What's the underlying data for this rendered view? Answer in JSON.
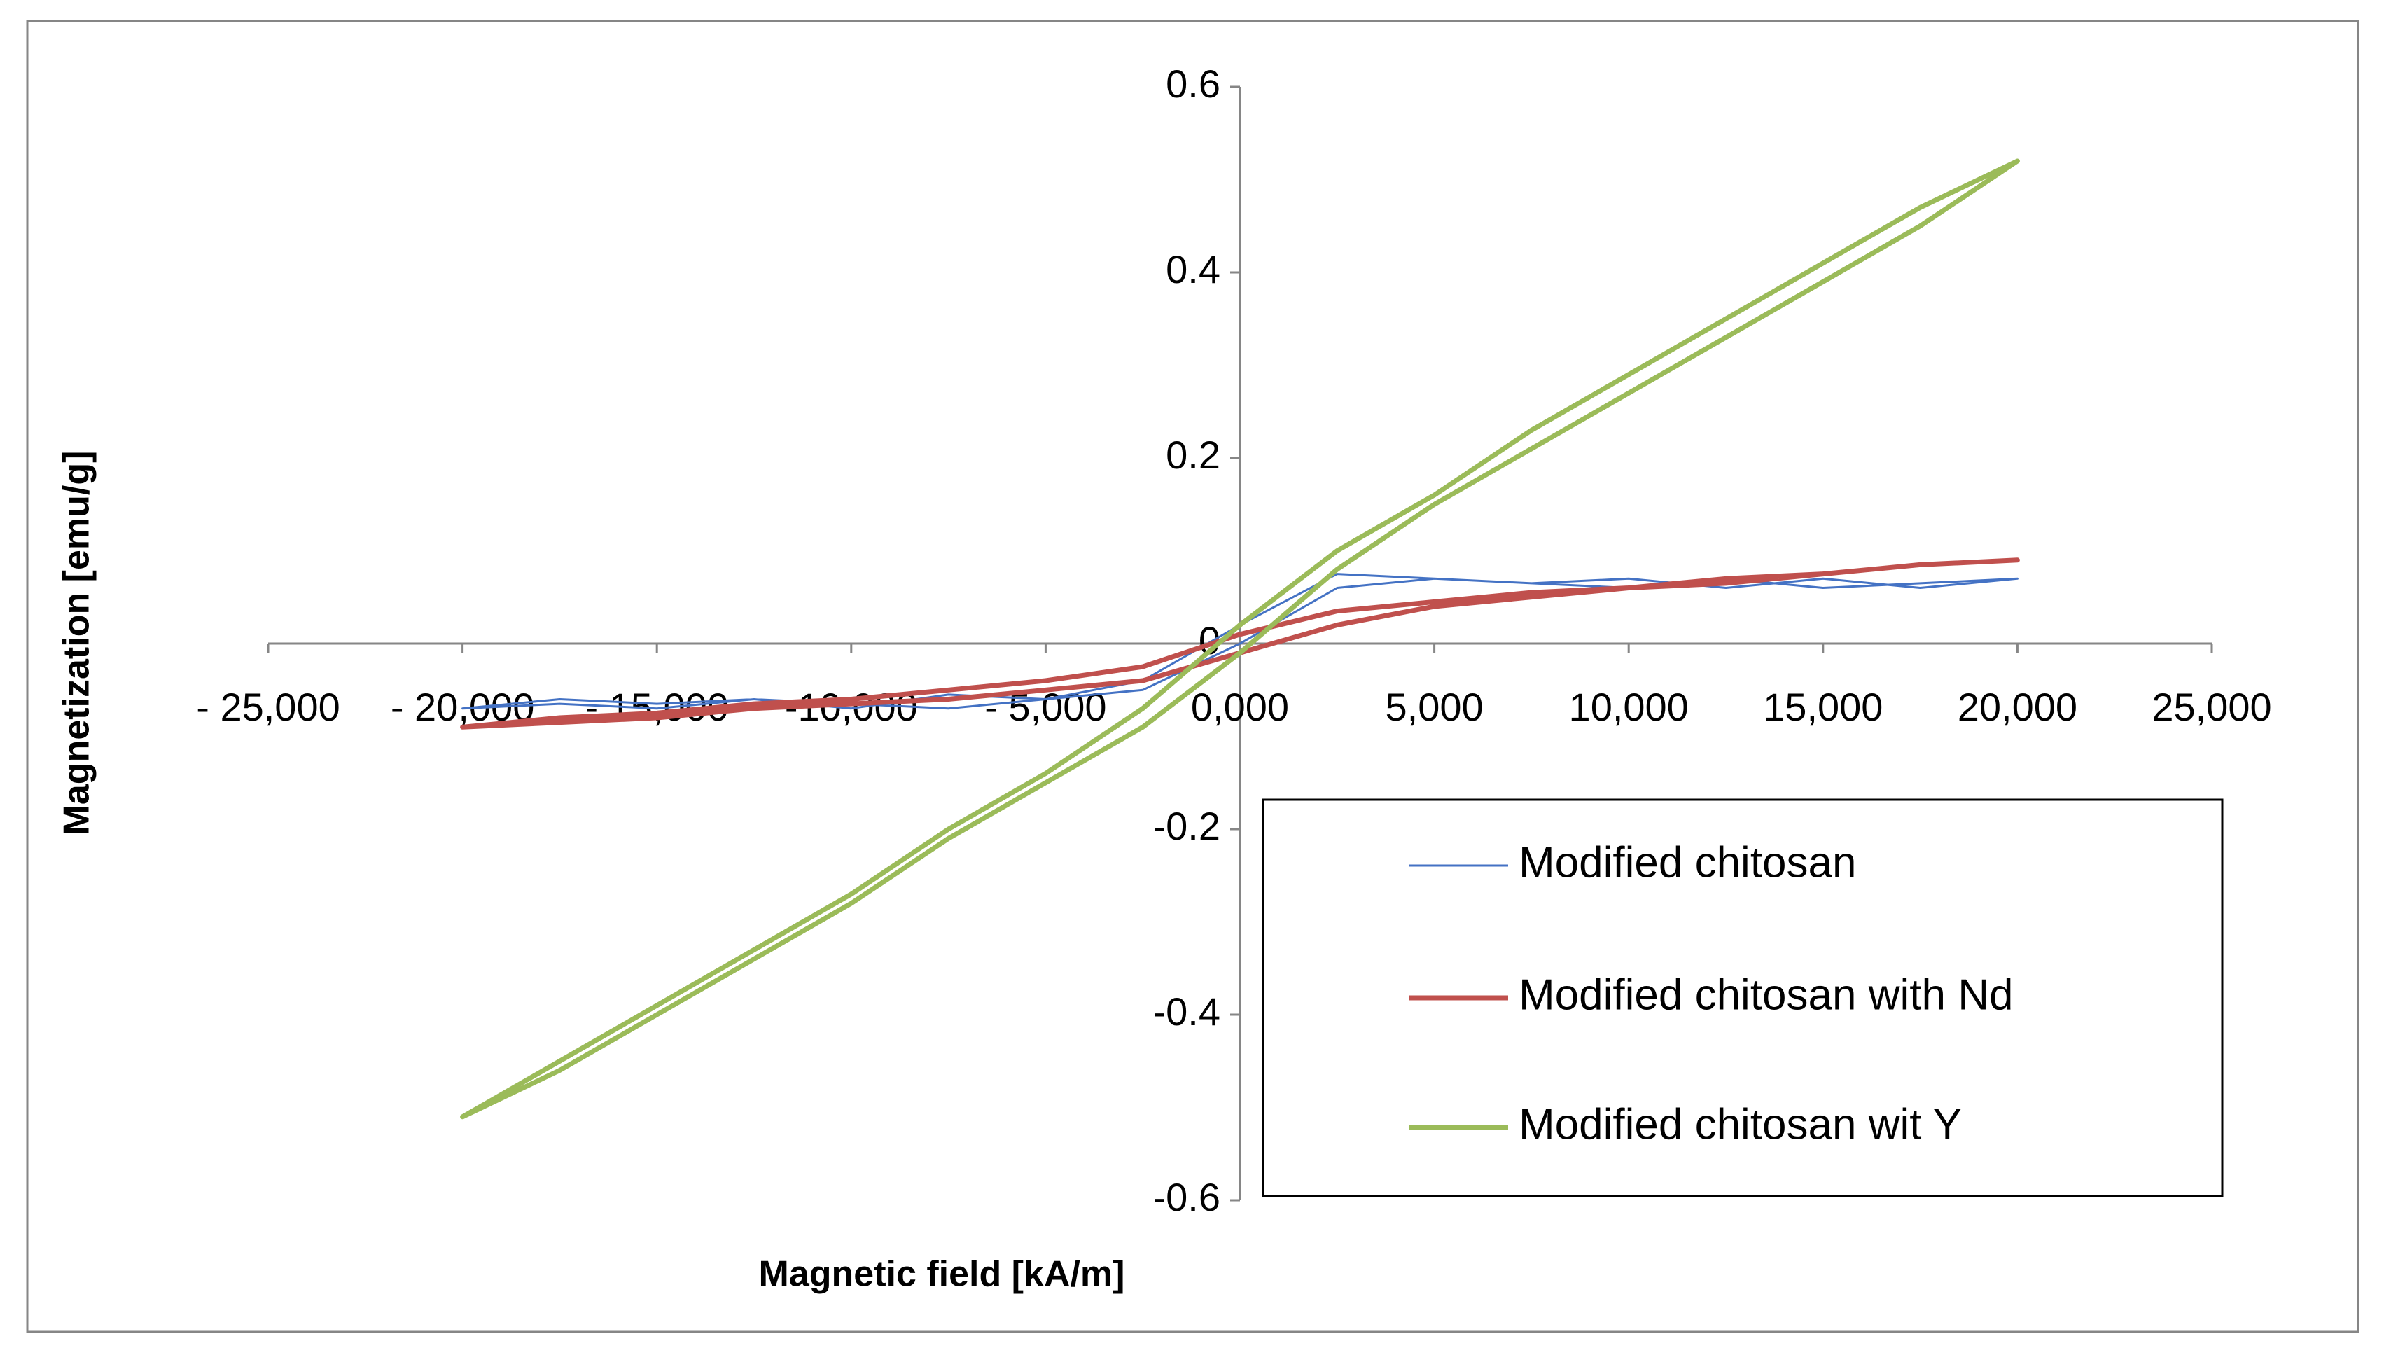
{
  "chart_data": {
    "type": "line",
    "x_label": "Magnetic field  [kA/m]",
    "y_label": "Magnetization [emu/g]",
    "xlim": [
      -25000,
      25000
    ],
    "ylim": [
      -0.6,
      0.6
    ],
    "xticks": [
      {
        "value": -25000,
        "label": "- 25,000"
      },
      {
        "value": -20000,
        "label": "- 20,000"
      },
      {
        "value": -15000,
        "label": "- 15,000"
      },
      {
        "value": -10000,
        "label": "-10,000"
      },
      {
        "value": -5000,
        "label": "- 5,000"
      },
      {
        "value": 0,
        "label": "0,000"
      },
      {
        "value": 5000,
        "label": "5,000"
      },
      {
        "value": 10000,
        "label": "10,000"
      },
      {
        "value": 15000,
        "label": "15,000"
      },
      {
        "value": 20000,
        "label": "20,000"
      },
      {
        "value": 25000,
        "label": "25,000"
      }
    ],
    "yticks": [
      0.6,
      0.4,
      0.2,
      0,
      -0.2,
      -0.4,
      -0.6
    ],
    "x": [
      20000,
      17500,
      15000,
      12500,
      10000,
      7500,
      5000,
      2500,
      0,
      -2500,
      -5000,
      -7500,
      -10000,
      -12500,
      -15000,
      -17500,
      -20000,
      -17500,
      -15000,
      -12500,
      -10000,
      -7500,
      -5000,
      -2500,
      0,
      2500,
      5000,
      7500,
      10000,
      12500,
      15000,
      17500,
      20000
    ],
    "legend": "lower right",
    "series": [
      {
        "name": "Modified chitosan",
        "color": "#4472c4",
        "width": 3,
        "values": [
          0.07,
          0.06,
          0.07,
          0.06,
          0.07,
          0.065,
          0.07,
          0.075,
          0.02,
          -0.04,
          -0.06,
          -0.055,
          -0.07,
          -0.06,
          -0.065,
          -0.06,
          -0.07,
          -0.065,
          -0.07,
          -0.06,
          -0.065,
          -0.07,
          -0.06,
          -0.05,
          0.0,
          0.06,
          0.07,
          0.065,
          0.06,
          0.07,
          0.06,
          0.065,
          0.07
        ]
      },
      {
        "name": "Modified chitosan with Nd",
        "color": "#c0504d",
        "width": 7,
        "values": [
          0.09,
          0.085,
          0.075,
          0.07,
          0.06,
          0.055,
          0.045,
          0.035,
          0.01,
          -0.025,
          -0.04,
          -0.05,
          -0.06,
          -0.065,
          -0.075,
          -0.08,
          -0.09,
          -0.085,
          -0.08,
          -0.07,
          -0.065,
          -0.06,
          -0.05,
          -0.04,
          -0.01,
          0.02,
          0.04,
          0.05,
          0.06,
          0.065,
          0.075,
          0.085,
          0.09
        ]
      },
      {
        "name": "Modified chitosan wit Y",
        "color": "#9bbb59",
        "width": 7,
        "values": [
          0.52,
          0.47,
          0.41,
          0.35,
          0.29,
          0.23,
          0.16,
          0.1,
          0.02,
          -0.07,
          -0.14,
          -0.2,
          -0.27,
          -0.33,
          -0.39,
          -0.45,
          -0.51,
          -0.46,
          -0.4,
          -0.34,
          -0.28,
          -0.21,
          -0.15,
          -0.09,
          -0.01,
          0.08,
          0.15,
          0.21,
          0.27,
          0.33,
          0.39,
          0.45,
          0.52
        ]
      }
    ]
  }
}
